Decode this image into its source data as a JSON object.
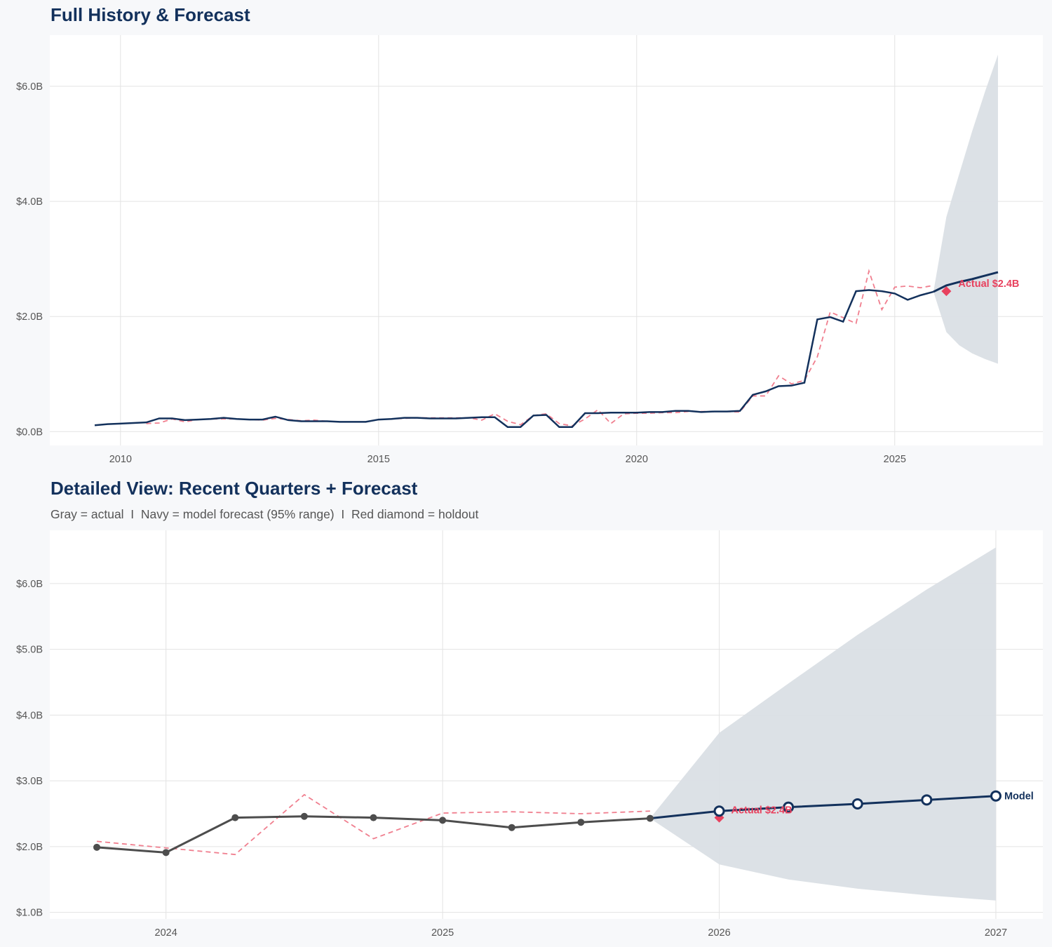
{
  "colors": {
    "background": "#f7f8fa",
    "plot_bg": "#ffffff",
    "navy": "#13315c",
    "red": "#e8415e",
    "fitted": "#f07f8f",
    "actual_gray": "#4d4d4d",
    "band": "#dadfe5",
    "grid": "#e3e3e3"
  },
  "chart_data": [
    {
      "type": "line",
      "title": "Full History & Forecast",
      "xlim": [
        2008.63,
        2027.87
      ],
      "ylim": [
        -0.24,
        6.89
      ],
      "x_ticks": [
        2010,
        2015,
        2020,
        2025
      ],
      "x_tick_labels": [
        "2010",
        "2015",
        "2020",
        "2025"
      ],
      "y_ticks": [
        0,
        2,
        4,
        6
      ],
      "y_tick_labels": [
        "$0.0B",
        "$2.0B",
        "$4.0B",
        "$6.0B"
      ],
      "grid": true,
      "x_start": 2009.5,
      "x_step": 0.25,
      "series": [
        {
          "role": "actual",
          "values": [
            0.11,
            0.13,
            0.14,
            0.15,
            0.16,
            0.23,
            0.23,
            0.2,
            0.21,
            0.22,
            0.24,
            0.22,
            0.21,
            0.21,
            0.26,
            0.2,
            0.18,
            0.18,
            0.18,
            0.17,
            0.17,
            0.17,
            0.21,
            0.22,
            0.24,
            0.24,
            0.23,
            0.23,
            0.23,
            0.24,
            0.25,
            0.25,
            0.08,
            0.08,
            0.28,
            0.29,
            0.08,
            0.08,
            0.32,
            0.32,
            0.33,
            0.33,
            0.33,
            0.34,
            0.34,
            0.36,
            0.36,
            0.34,
            0.35,
            0.35,
            0.36,
            0.64,
            0.7,
            0.79,
            0.8,
            0.85,
            1.95,
            1.99,
            1.91,
            2.44,
            2.46,
            2.44,
            2.4,
            2.29,
            2.37,
            2.43
          ]
        },
        {
          "role": "fitted",
          "values": [
            null,
            null,
            null,
            null,
            0.14,
            0.15,
            0.22,
            0.17,
            0.21,
            0.22,
            0.22,
            0.22,
            0.21,
            0.2,
            0.23,
            0.21,
            0.19,
            0.2,
            0.18,
            0.17,
            0.17,
            0.17,
            0.21,
            0.22,
            0.23,
            0.24,
            0.24,
            0.24,
            0.24,
            0.24,
            0.2,
            0.31,
            0.18,
            0.12,
            0.28,
            0.31,
            0.14,
            0.1,
            0.22,
            0.38,
            0.14,
            0.31,
            0.32,
            0.32,
            0.33,
            0.33,
            0.35,
            0.35,
            0.35,
            0.35,
            0.34,
            0.62,
            0.62,
            0.97,
            0.83,
            0.89,
            1.3,
            2.08,
            1.98,
            1.88,
            2.79,
            2.12,
            2.51,
            2.53,
            2.5,
            2.54
          ]
        }
      ],
      "forecast": {
        "x": [
          2025.75,
          2026.0,
          2026.25,
          2026.5,
          2026.75,
          2027.0
        ],
        "mean": [
          2.43,
          2.54,
          2.6,
          2.65,
          2.71,
          2.77
        ],
        "lower": [
          2.43,
          1.73,
          1.5,
          1.36,
          1.26,
          1.18
        ],
        "upper": [
          2.43,
          3.73,
          4.48,
          5.22,
          5.91,
          6.55
        ]
      },
      "holdout": {
        "x": 2026.0,
        "value": 2.44,
        "label": "Actual $2.4B"
      }
    },
    {
      "type": "line",
      "title": "Detailed View: Recent Quarters + Forecast",
      "subtitle": "Gray = actual  I  Navy = model forecast (95% range)  I  Red diamond = holdout",
      "xlim": [
        2023.58,
        2027.17
      ],
      "ylim": [
        0.9,
        6.81
      ],
      "x_ticks": [
        2024,
        2025,
        2026,
        2027
      ],
      "x_tick_labels": [
        "2024",
        "2025",
        "2026",
        "2027"
      ],
      "y_ticks": [
        1,
        2,
        3,
        4,
        5,
        6
      ],
      "y_tick_labels": [
        "$1.0B",
        "$2.0B",
        "$3.0B",
        "$4.0B",
        "$5.0B",
        "$6.0B"
      ],
      "grid": true,
      "x_start": 2023.75,
      "x_step": 0.25,
      "series": [
        {
          "role": "actual",
          "values": [
            1.99,
            1.91,
            2.44,
            2.46,
            2.44,
            2.4,
            2.29,
            2.37,
            2.43
          ]
        },
        {
          "role": "fitted",
          "values": [
            2.08,
            1.98,
            1.88,
            2.79,
            2.12,
            2.51,
            2.53,
            2.5,
            2.54
          ]
        }
      ],
      "forecast": {
        "x": [
          2025.75,
          2026.0,
          2026.25,
          2026.5,
          2026.75,
          2027.0
        ],
        "mean": [
          2.43,
          2.54,
          2.6,
          2.65,
          2.71,
          2.77
        ],
        "lower": [
          2.43,
          1.73,
          1.5,
          1.36,
          1.26,
          1.18
        ],
        "upper": [
          2.43,
          3.73,
          4.48,
          5.22,
          5.91,
          6.55
        ],
        "label": "Model"
      },
      "holdout": {
        "x": 2026.0,
        "value": 2.44,
        "label": "Actual $2.4B"
      }
    }
  ]
}
